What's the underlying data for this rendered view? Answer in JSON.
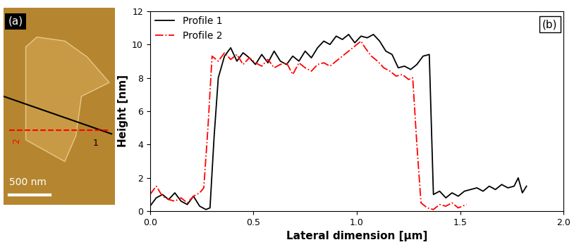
{
  "image_panel": {
    "label": "(a)",
    "scale_bar": "500 nm",
    "profile_labels": [
      "1",
      "2"
    ]
  },
  "chart_data": {
    "type": "line",
    "annotations": [
      "(b)"
    ],
    "x_label": "Lateral dimension [μm]",
    "y_label": "Height [nm]",
    "xlim": [
      0.0,
      2.0
    ],
    "xticks": [
      0.0,
      0.5,
      1.0,
      1.5,
      2.0
    ],
    "ylim": [
      0,
      12
    ],
    "yticks": [
      0,
      2,
      4,
      6,
      8,
      10,
      12
    ],
    "legend": "upper left",
    "grid": false,
    "series": [
      {
        "name": "Profile 1",
        "color": "#000000",
        "line_style": "solid",
        "x": [
          0.0,
          0.03,
          0.06,
          0.09,
          0.12,
          0.15,
          0.18,
          0.21,
          0.24,
          0.27,
          0.29,
          0.31,
          0.33,
          0.36,
          0.39,
          0.42,
          0.45,
          0.48,
          0.51,
          0.54,
          0.57,
          0.6,
          0.63,
          0.66,
          0.69,
          0.72,
          0.75,
          0.78,
          0.81,
          0.84,
          0.87,
          0.9,
          0.93,
          0.96,
          0.99,
          1.02,
          1.05,
          1.08,
          1.11,
          1.14,
          1.17,
          1.2,
          1.23,
          1.26,
          1.29,
          1.32,
          1.35,
          1.37,
          1.4,
          1.43,
          1.46,
          1.49,
          1.52,
          1.55,
          1.58,
          1.61,
          1.64,
          1.67,
          1.7,
          1.73,
          1.76,
          1.78,
          1.8,
          1.82
        ],
        "values": [
          0.3,
          0.8,
          1.0,
          0.7,
          1.1,
          0.6,
          0.4,
          0.9,
          0.3,
          0.1,
          0.2,
          4.5,
          8.0,
          9.3,
          9.8,
          9.0,
          9.5,
          9.2,
          8.8,
          9.4,
          8.9,
          9.6,
          9.0,
          8.8,
          9.3,
          9.0,
          9.6,
          9.2,
          9.8,
          10.2,
          10.0,
          10.5,
          10.3,
          10.6,
          10.1,
          10.5,
          10.4,
          10.6,
          10.2,
          9.6,
          9.4,
          8.6,
          8.7,
          8.5,
          8.8,
          9.3,
          9.4,
          1.0,
          1.2,
          0.8,
          1.1,
          0.9,
          1.2,
          1.3,
          1.4,
          1.2,
          1.5,
          1.3,
          1.6,
          1.4,
          1.5,
          2.0,
          1.1,
          1.5
        ]
      },
      {
        "name": "Profile 2",
        "color": "#ff0000",
        "line_style": "dashdot",
        "x": [
          0.0,
          0.03,
          0.06,
          0.09,
          0.12,
          0.15,
          0.18,
          0.21,
          0.24,
          0.26,
          0.28,
          0.3,
          0.33,
          0.36,
          0.39,
          0.42,
          0.45,
          0.48,
          0.51,
          0.54,
          0.57,
          0.6,
          0.63,
          0.66,
          0.69,
          0.72,
          0.75,
          0.78,
          0.81,
          0.84,
          0.87,
          0.9,
          0.93,
          0.96,
          0.99,
          1.02,
          1.04,
          1.07,
          1.1,
          1.13,
          1.16,
          1.19,
          1.22,
          1.25,
          1.27,
          1.29,
          1.31,
          1.34,
          1.37,
          1.4,
          1.43,
          1.46,
          1.49,
          1.53
        ],
        "values": [
          1.0,
          1.5,
          0.9,
          0.7,
          0.6,
          0.8,
          0.5,
          0.9,
          1.1,
          1.4,
          5.0,
          9.3,
          9.0,
          9.5,
          9.1,
          9.4,
          8.8,
          9.2,
          8.9,
          8.7,
          9.1,
          8.6,
          8.8,
          8.9,
          8.2,
          8.9,
          8.6,
          8.4,
          8.8,
          8.9,
          8.7,
          9.0,
          9.3,
          9.6,
          9.9,
          10.2,
          9.8,
          9.3,
          9.0,
          8.6,
          8.4,
          8.1,
          8.2,
          7.9,
          8.0,
          4.0,
          0.5,
          0.2,
          0.1,
          0.4,
          0.3,
          0.5,
          0.2,
          0.4
        ]
      }
    ]
  }
}
